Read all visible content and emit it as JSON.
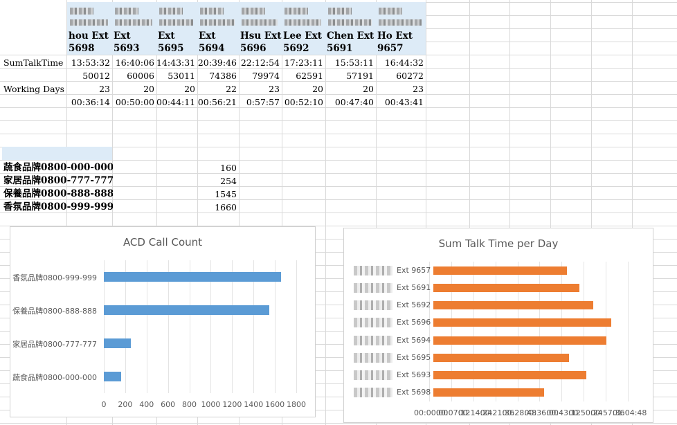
{
  "headers": [
    {
      "line1": "hou Ext",
      "line2": "5698"
    },
    {
      "line1": "Ext",
      "line2": "5693"
    },
    {
      "line1": "Ext",
      "line2": "5695"
    },
    {
      "line1": "Ext",
      "line2": "5694"
    },
    {
      "line1": "Hsu Ext",
      "line2": "5696"
    },
    {
      "line1": "Lee Ext",
      "line2": "5692"
    },
    {
      "line1": "Chen Ext",
      "line2": "5691"
    },
    {
      "line1": "Ho Ext",
      "line2": "9657"
    }
  ],
  "rows": {
    "sum_label": "SumTalkTime",
    "sum_values": [
      "13:53:32",
      "16:40:06",
      "14:43:31",
      "20:39:46",
      "22:12:54",
      "17:23:11",
      "15:53:11",
      "16:44:32"
    ],
    "sec_values": [
      "50012",
      "60006",
      "53011",
      "74386",
      "79974",
      "62591",
      "57191",
      "60272"
    ],
    "days_label": "Working Days",
    "days_values": [
      "23",
      "20",
      "20",
      "22",
      "23",
      "20",
      "20",
      "23"
    ],
    "perday_values": [
      "00:36:14",
      "00:50:00",
      "00:44:11",
      "00:56:21",
      "0:57:57",
      "00:52:10",
      "00:47:40",
      "00:43:41"
    ]
  },
  "brands": [
    {
      "name": "蔬食品牌0800-000-000",
      "count": "160"
    },
    {
      "name": "家居品牌0800-777-777",
      "count": "254"
    },
    {
      "name": "保養品牌0800-888-888",
      "count": "1545"
    },
    {
      "name": "香氛品牌0800-999-999",
      "count": "1660"
    }
  ],
  "colors": {
    "acd_bar": "#5b9bd5",
    "talk_bar": "#ed7d31",
    "header_fill": "#ddebf7",
    "grid": "#d9d9d9"
  },
  "chart_data": [
    {
      "type": "bar",
      "orientation": "horizontal",
      "title": "ACD Call Count",
      "categories": [
        "香氛品牌0800-999-999",
        "保養品牌0800-888-888",
        "家居品牌0800-777-777",
        "蔬食品牌0800-000-000"
      ],
      "values": [
        1660,
        1545,
        254,
        160
      ],
      "xlim": [
        0,
        1800
      ],
      "xticks": [
        "0",
        "200",
        "400",
        "600",
        "800",
        "1000",
        "1200",
        "1400",
        "1600",
        "1800"
      ],
      "grid": true
    },
    {
      "type": "bar",
      "orientation": "horizontal",
      "title": "Sum Talk Time per Day",
      "categories": [
        "Ext 9657",
        "Ext 5691",
        "Ext 5692",
        "Ext 5696",
        "Ext 5694",
        "Ext 5695",
        "Ext 5693",
        "Ext 5698"
      ],
      "values": [
        "00:43:41",
        "00:47:40",
        "00:52:10",
        "0:57:57",
        "00:56:21",
        "00:44:11",
        "00:50:00",
        "00:36:14"
      ],
      "xlim": [
        "00:00:00",
        "01:04:48"
      ],
      "xticks": [
        "00:00:00",
        "00:07:12",
        "00:14:24",
        "00:21:36",
        "00:28:48",
        "00:36:00",
        "00:43:12",
        "00:50:24",
        "00:57:36",
        "01:04:48"
      ],
      "grid": true
    }
  ]
}
